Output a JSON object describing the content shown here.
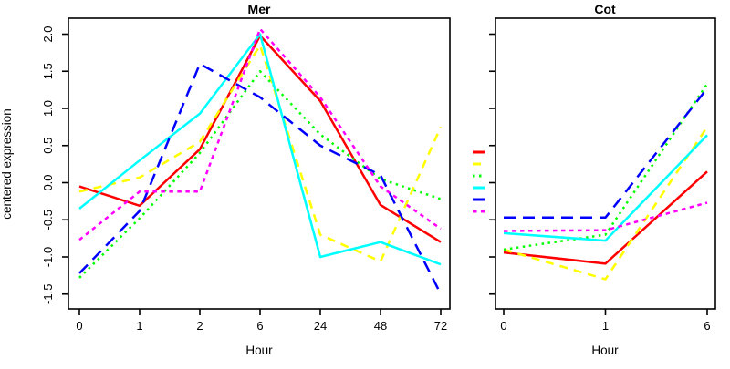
{
  "figure": {
    "ylabel": "centered expression",
    "background_color": "#ffffff",
    "axis_color": "#000000"
  },
  "chart_data": [
    {
      "type": "line",
      "title": "Mer",
      "xlabel": "Hour",
      "ylabel": "centered expression",
      "x_tick_labels": [
        "0",
        "1",
        "2",
        "6",
        "24",
        "48",
        "72"
      ],
      "y_tick_labels": [
        "2.0",
        "1.5",
        "1.0",
        "0.5",
        "0.0",
        "-0.5",
        "-1.0",
        "-1.5"
      ],
      "y_tick_values": [
        2.0,
        1.5,
        1.0,
        0.5,
        0.0,
        -0.5,
        -1.0,
        -1.5
      ],
      "ylim": [
        -1.7,
        2.2
      ],
      "grid": false,
      "legend_position": "none",
      "series": [
        {
          "name": "series-red",
          "color": "#ff0000",
          "linestyle": "solid",
          "values": [
            -0.05,
            -0.31,
            0.45,
            1.98,
            1.1,
            -0.3,
            -0.8
          ]
        },
        {
          "name": "series-yellow",
          "color": "#ffff00",
          "linestyle": "dashed",
          "values": [
            -0.12,
            0.07,
            0.55,
            1.85,
            -0.7,
            -1.06,
            0.75
          ]
        },
        {
          "name": "series-green",
          "color": "#00ff00",
          "linestyle": "dotted",
          "values": [
            -1.28,
            -0.48,
            0.4,
            1.5,
            0.65,
            0.05,
            -0.22
          ]
        },
        {
          "name": "series-cyan",
          "color": "#00ffff",
          "linestyle": "solid",
          "values": [
            -0.35,
            0.3,
            0.93,
            2.0,
            -1.0,
            -0.8,
            -1.1
          ]
        },
        {
          "name": "series-blue",
          "color": "#0000ff",
          "linestyle": "longdash",
          "values": [
            -1.22,
            -0.38,
            1.6,
            1.15,
            0.5,
            0.1,
            -1.5
          ]
        },
        {
          "name": "series-magenta",
          "color": "#ff00ff",
          "linestyle": "shortdash",
          "values": [
            -0.77,
            -0.12,
            -0.12,
            2.07,
            1.15,
            -0.05,
            -0.62
          ]
        }
      ]
    },
    {
      "type": "line",
      "title": "Cot",
      "xlabel": "Hour",
      "ylabel": "",
      "x_tick_labels": [
        "0",
        "1",
        "6"
      ],
      "y_tick_labels": [],
      "y_tick_values": [
        2.0,
        1.5,
        1.0,
        0.5,
        0.0,
        -0.5,
        -1.0,
        -1.5
      ],
      "ylim": [
        -1.7,
        2.2
      ],
      "grid": false,
      "legend_position": "left-outside",
      "series": [
        {
          "name": "series-red",
          "color": "#ff0000",
          "linestyle": "solid",
          "values": [
            -0.94,
            -1.09,
            0.15
          ]
        },
        {
          "name": "series-yellow",
          "color": "#ffff00",
          "linestyle": "dashed",
          "values": [
            -0.9,
            -1.3,
            0.75
          ]
        },
        {
          "name": "series-green",
          "color": "#00ff00",
          "linestyle": "dotted",
          "values": [
            -0.9,
            -0.7,
            1.33
          ]
        },
        {
          "name": "series-cyan",
          "color": "#00ffff",
          "linestyle": "solid",
          "values": [
            -0.68,
            -0.78,
            0.64
          ]
        },
        {
          "name": "series-blue",
          "color": "#0000ff",
          "linestyle": "longdash",
          "values": [
            -0.47,
            -0.47,
            1.27
          ]
        },
        {
          "name": "series-magenta",
          "color": "#ff00ff",
          "linestyle": "shortdash",
          "values": [
            -0.65,
            -0.64,
            -0.27
          ]
        }
      ]
    }
  ],
  "legend": {
    "has_text_labels": false,
    "entries": [
      {
        "name": "legend-red",
        "color": "#ff0000",
        "linestyle": "solid"
      },
      {
        "name": "legend-yellow",
        "color": "#ffff00",
        "linestyle": "dashed"
      },
      {
        "name": "legend-green",
        "color": "#00ff00",
        "linestyle": "dotted"
      },
      {
        "name": "legend-cyan",
        "color": "#00ffff",
        "linestyle": "solid"
      },
      {
        "name": "legend-blue",
        "color": "#0000ff",
        "linestyle": "longdash"
      },
      {
        "name": "legend-magenta",
        "color": "#ff00ff",
        "linestyle": "shortdash"
      }
    ]
  }
}
